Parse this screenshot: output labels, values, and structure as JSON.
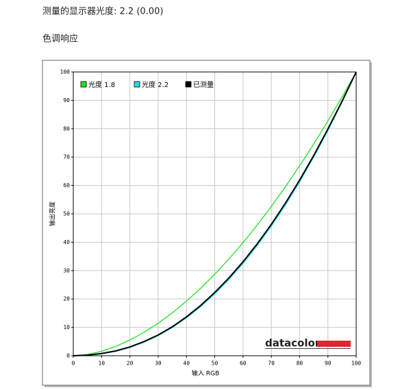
{
  "header": {
    "title": "测量的显示器光度: 2.2 (0.00)",
    "section": "色调响应"
  },
  "chart_data": {
    "type": "line",
    "x_label": "输入 RGB",
    "y_label": "输出亮度",
    "watermark": "datacolor",
    "x": [
      0,
      5,
      10,
      15,
      20,
      25,
      30,
      35,
      40,
      45,
      50,
      55,
      60,
      65,
      70,
      75,
      80,
      85,
      90,
      95,
      100
    ],
    "series": [
      {
        "name": "光度 1.8",
        "color": "#22e022",
        "values": [
          0,
          0.46,
          1.58,
          3.29,
          5.52,
          8.25,
          11.45,
          15.11,
          19.22,
          23.76,
          28.72,
          34.09,
          39.87,
          46.05,
          52.63,
          59.58,
          66.92,
          74.64,
          82.72,
          91.18,
          100
        ]
      },
      {
        "name": "光度 2.2",
        "color": "#22dede",
        "values": [
          0,
          0.14,
          0.63,
          1.54,
          2.9,
          4.74,
          7.07,
          9.93,
          13.32,
          17.26,
          21.76,
          26.84,
          32.5,
          38.76,
          45.62,
          53.1,
          61.21,
          69.94,
          79.31,
          89.33,
          100
        ]
      },
      {
        "name": "已测量",
        "color": "#000000",
        "values": [
          0,
          0.2,
          0.8,
          1.7,
          3.1,
          5.0,
          7.3,
          10.2,
          13.7,
          17.7,
          22.3,
          27.4,
          33.1,
          39.4,
          46.3,
          53.8,
          61.9,
          70.6,
          79.9,
          89.7,
          100
        ]
      }
    ],
    "xlim": [
      0,
      100
    ],
    "ylim": [
      0,
      100
    ],
    "xticks": [
      0,
      10,
      20,
      30,
      40,
      50,
      60,
      70,
      80,
      90,
      100
    ],
    "yticks": [
      0,
      10,
      20,
      30,
      40,
      50,
      60,
      70,
      80,
      90,
      100
    ],
    "grid": true,
    "legend": "top-left"
  }
}
